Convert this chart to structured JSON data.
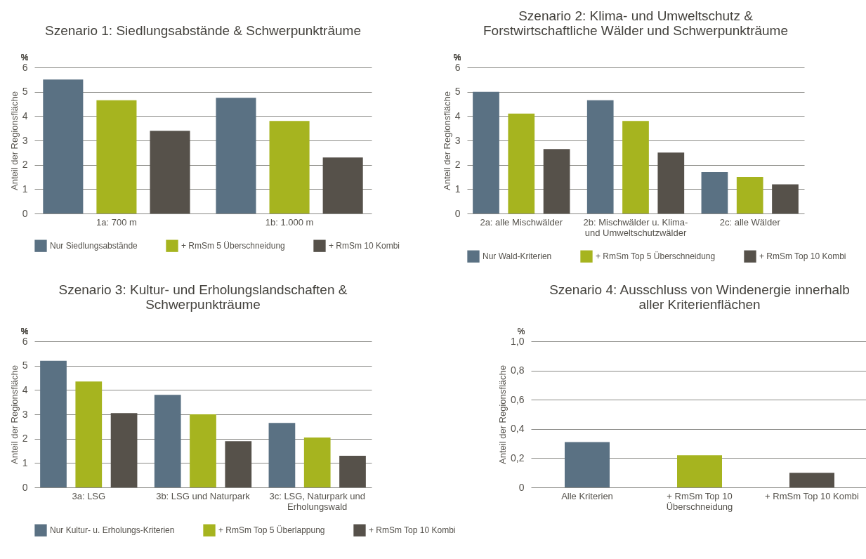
{
  "chart_data": [
    {
      "type": "bar",
      "title": "Szenario 1: Siedlungsabstände & Schwerpunkträume",
      "ylabel": "Anteil der Regionsfläche",
      "annotations": [
        "%"
      ],
      "categories": [
        "1a: 700 m",
        "1b: 1.000 m"
      ],
      "series": [
        {
          "name": "Nur Siedlungsabstände",
          "color": "#5a7183",
          "values": [
            5.5,
            4.75
          ]
        },
        {
          "name": "+ RmSm 5 Überschneidung",
          "color": "#a6b41f",
          "values": [
            4.65,
            3.8
          ]
        },
        {
          "name": "+ RmSm 10 Kombi",
          "color": "#56514a",
          "values": [
            3.4,
            2.3
          ]
        }
      ],
      "ylim": [
        0,
        6
      ],
      "yticks": [
        0,
        1,
        2,
        3,
        4,
        5,
        6
      ],
      "grid": "y",
      "legend": "bottom"
    },
    {
      "type": "bar",
      "title": "Szenario 2: Klima- und Umweltschutz & Forstwirtschaftliche Wälder und Schwerpunkträume",
      "ylabel": "Anteil der Regionsfläche",
      "annotations": [
        "%"
      ],
      "categories": [
        "2a: alle Mischwälder",
        "2b: Mischwälder u. Klima- und Umweltschutzwälder",
        "2c: alle Wälder"
      ],
      "series": [
        {
          "name": "Nur Wald-Kriterien",
          "color": "#5a7183",
          "values": [
            5.0,
            4.65,
            1.7
          ]
        },
        {
          "name": "+ RmSm Top 5 Überschneidung",
          "color": "#a6b41f",
          "values": [
            4.1,
            3.8,
            1.5
          ]
        },
        {
          "name": "+ RmSm Top 10 Kombi",
          "color": "#56514a",
          "values": [
            2.65,
            2.5,
            1.2
          ]
        }
      ],
      "ylim": [
        0,
        6
      ],
      "yticks": [
        0,
        1,
        2,
        3,
        4,
        5,
        6
      ],
      "grid": "y",
      "legend": "bottom"
    },
    {
      "type": "bar",
      "title": "Szenario 3: Kultur- und Erholungslandschaften & Schwerpunkträume",
      "ylabel": "Anteil der Regionsfläche",
      "annotations": [
        "%"
      ],
      "categories": [
        "3a: LSG",
        "3b: LSG und Naturpark",
        "3c: LSG, Naturpark und Erholungswald"
      ],
      "series": [
        {
          "name": "Nur Kultur- u. Erholungs-Kriterien",
          "color": "#5a7183",
          "values": [
            5.2,
            3.8,
            2.65
          ]
        },
        {
          "name": "+ RmSm Top 5 Überlappung",
          "color": "#a6b41f",
          "values": [
            4.35,
            3.0,
            2.05
          ]
        },
        {
          "name": "+ RmSm Top 10 Kombi",
          "color": "#56514a",
          "values": [
            3.05,
            1.9,
            1.3
          ]
        }
      ],
      "ylim": [
        0,
        6
      ],
      "yticks": [
        0,
        1,
        2,
        3,
        4,
        5,
        6
      ],
      "grid": "y",
      "legend": "bottom"
    },
    {
      "type": "bar",
      "title": "Szenario 4: Ausschluss von Windenergie innerhalb aller Kriterienflächen",
      "ylabel": "Anteil der Regionsfläche",
      "annotations": [
        "%"
      ],
      "categories": [
        "Alle Kriterien",
        "+ RmSm Top 10 Überschneidung",
        "+ RmSm Top 10 Kombi"
      ],
      "values": [
        0.31,
        0.22,
        0.1
      ],
      "colors": [
        "#5a7183",
        "#a6b41f",
        "#56514a"
      ],
      "ylim": [
        0,
        1
      ],
      "yticks": [
        0,
        {
          "value": 0.2,
          "label": "0,2"
        },
        {
          "value": 0.4,
          "label": "0,4"
        },
        {
          "value": 0.6,
          "label": "0,6"
        },
        {
          "value": 0.8,
          "label": "0,8"
        },
        {
          "value": 1,
          "label": "1,0"
        }
      ],
      "grid": "y"
    }
  ]
}
